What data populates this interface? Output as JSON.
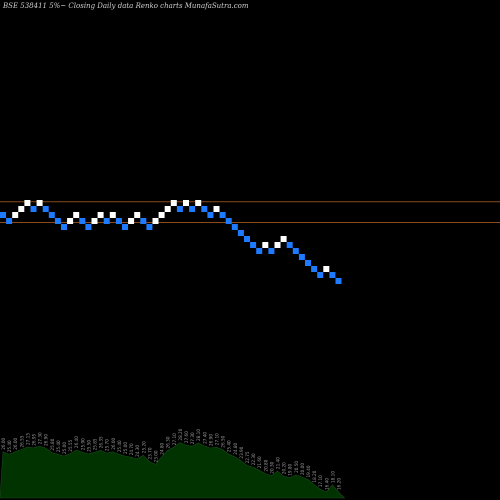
{
  "chart_data": {
    "type": "renko",
    "title": "BSE 538411 5%~  Closing Daily data  Renko  charts MunafaSutra.com",
    "box_size_pct": 5,
    "colors": {
      "up_brick": "#ffffff",
      "down_brick": "#1e7bff",
      "reference_line": "#8a4a1a",
      "volume_fill": "#003300",
      "volume_line": "#1a4a1a",
      "label": "#9a9a9a",
      "background": "#000000"
    },
    "reference_levels": [
      22.62,
      20.55
    ],
    "bricks": [
      {
        "d": "down",
        "v": 21.6
      },
      {
        "d": "down",
        "v": 21.0
      },
      {
        "d": "up",
        "v": 21.6
      },
      {
        "d": "up",
        "v": 22.2
      },
      {
        "d": "up",
        "v": 22.8
      },
      {
        "d": "down",
        "v": 22.2
      },
      {
        "d": "up",
        "v": 22.8
      },
      {
        "d": "down",
        "v": 22.2
      },
      {
        "d": "down",
        "v": 21.6
      },
      {
        "d": "down",
        "v": 21.0
      },
      {
        "d": "down",
        "v": 20.4
      },
      {
        "d": "up",
        "v": 21.0
      },
      {
        "d": "up",
        "v": 21.6
      },
      {
        "d": "down",
        "v": 21.0
      },
      {
        "d": "down",
        "v": 20.4
      },
      {
        "d": "up",
        "v": 21.0
      },
      {
        "d": "up",
        "v": 21.6
      },
      {
        "d": "down",
        "v": 21.0
      },
      {
        "d": "up",
        "v": 21.6
      },
      {
        "d": "down",
        "v": 21.0
      },
      {
        "d": "down",
        "v": 20.4
      },
      {
        "d": "up",
        "v": 21.0
      },
      {
        "d": "up",
        "v": 21.6
      },
      {
        "d": "down",
        "v": 21.0
      },
      {
        "d": "down",
        "v": 20.4
      },
      {
        "d": "up",
        "v": 21.0
      },
      {
        "d": "up",
        "v": 21.6
      },
      {
        "d": "up",
        "v": 22.2
      },
      {
        "d": "up",
        "v": 22.8
      },
      {
        "d": "down",
        "v": 22.2
      },
      {
        "d": "up",
        "v": 22.8
      },
      {
        "d": "down",
        "v": 22.2
      },
      {
        "d": "up",
        "v": 22.8
      },
      {
        "d": "down",
        "v": 22.2
      },
      {
        "d": "down",
        "v": 21.6
      },
      {
        "d": "up",
        "v": 22.2
      },
      {
        "d": "down",
        "v": 21.6
      },
      {
        "d": "down",
        "v": 21.0
      },
      {
        "d": "down",
        "v": 20.4
      },
      {
        "d": "down",
        "v": 19.8
      },
      {
        "d": "down",
        "v": 19.2
      },
      {
        "d": "down",
        "v": 18.6
      },
      {
        "d": "down",
        "v": 18.0
      },
      {
        "d": "up",
        "v": 18.6
      },
      {
        "d": "down",
        "v": 18.0
      },
      {
        "d": "up",
        "v": 18.6
      },
      {
        "d": "up",
        "v": 19.2
      },
      {
        "d": "down",
        "v": 18.6
      },
      {
        "d": "down",
        "v": 18.0
      },
      {
        "d": "down",
        "v": 17.4
      },
      {
        "d": "down",
        "v": 16.8
      },
      {
        "d": "down",
        "v": 16.2
      },
      {
        "d": "down",
        "v": 15.6
      },
      {
        "d": "up",
        "v": 16.2
      },
      {
        "d": "down",
        "v": 15.6
      },
      {
        "d": "down",
        "v": 15.0
      }
    ],
    "price_labels": [
      "26.00",
      "25.40",
      "26.00",
      "26.55",
      "27.15",
      "26.95",
      "27.30",
      "26.90",
      "25.80",
      "25.40",
      "25.00",
      "25.55",
      "26.40",
      "25.90",
      "25.50",
      "25.85",
      "26.35",
      "25.70",
      "26.00",
      "25.40",
      "25.00",
      "24.70",
      "24.30",
      "25.20",
      "23.70",
      "23.00",
      "24.80",
      "26.30",
      "27.10",
      "28.20",
      "27.60",
      "27.30",
      "28.10",
      "27.40",
      "26.90",
      "27.10",
      "26.50",
      "25.40",
      "24.80",
      "23.90",
      "22.75",
      "22.30",
      "21.60",
      "20.80",
      "20.30",
      "21.40",
      "20.20",
      "19.80",
      "20.50",
      "20.00",
      "19.40",
      "18.20",
      "17.10",
      "16.40",
      "18.10",
      "16.20"
    ]
  }
}
